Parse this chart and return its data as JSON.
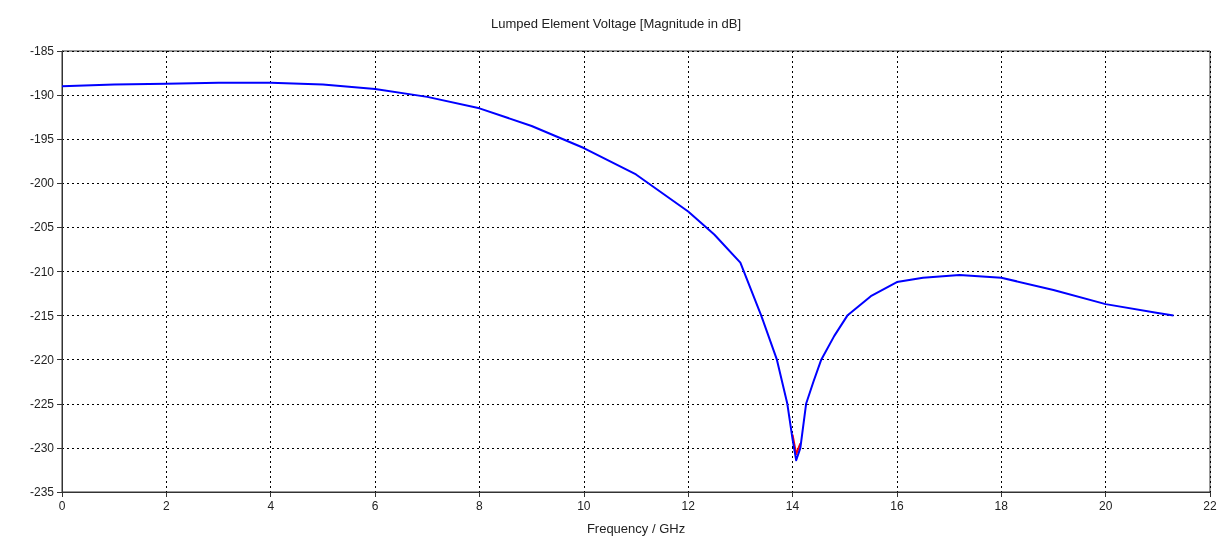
{
  "chart_data": {
    "type": "line",
    "title": "Lumped Element Voltage [Magnitude in dB]",
    "xlabel": "Frequency / GHz",
    "x": [
      0,
      1,
      2,
      3,
      4,
      5,
      6,
      7,
      8,
      9,
      10,
      11,
      12,
      12.5,
      13,
      13.4,
      13.7,
      13.9,
      14.0,
      14.07,
      14.15,
      14.26,
      14.4,
      14.55,
      14.8,
      15.05,
      15.5,
      16,
      16.5,
      17.2,
      18,
      19,
      20,
      21,
      21.3
    ],
    "series": [
      {
        "color": "#ff0000",
        "values": [
          null,
          null,
          null,
          null,
          null,
          null,
          null,
          null,
          null,
          null,
          null,
          null,
          null,
          null,
          null,
          null,
          null,
          null,
          -228.5,
          -230.7,
          -229.5,
          null,
          null,
          null,
          null,
          null,
          null,
          null,
          null,
          null,
          null,
          null,
          null,
          null,
          null
        ]
      },
      {
        "color": "#0000ff",
        "values": [
          -189.0,
          -188.8,
          -188.7,
          -188.6,
          -188.6,
          -188.8,
          -189.3,
          -190.2,
          -191.5,
          -193.5,
          -196.0,
          -199.0,
          -203.2,
          -205.8,
          -209.0,
          -215,
          -220,
          -225,
          -229,
          -231.4,
          -230,
          -225,
          -222.5,
          -220,
          -217.3,
          -215,
          -212.8,
          -211.2,
          -210.7,
          -210.4,
          -210.7,
          -212.1,
          -213.7,
          -214.7,
          -215
        ]
      }
    ],
    "xlim": [
      0,
      22
    ],
    "xticks": [
      0,
      2,
      4,
      6,
      8,
      10,
      12,
      14,
      16,
      18,
      20,
      22
    ],
    "ylim": [
      -235,
      -185
    ],
    "yticks": [
      -235,
      -230,
      -225,
      -220,
      -215,
      -210,
      -205,
      -200,
      -195,
      -190,
      -185
    ],
    "grid": true,
    "marker": "none",
    "line_style": "solid"
  }
}
